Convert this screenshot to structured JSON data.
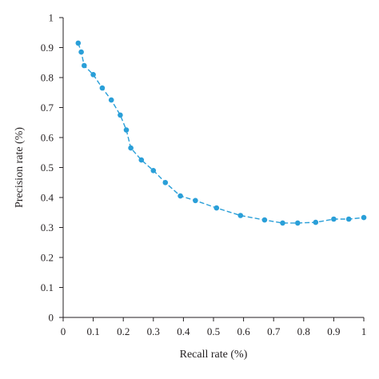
{
  "chart_data": {
    "type": "line",
    "title": "",
    "xlabel": "Recall rate (%)",
    "ylabel": "Precision rate (%)",
    "xlim": [
      0,
      1
    ],
    "ylim": [
      0,
      1
    ],
    "xticks": [
      "0",
      "0.1",
      "0.2",
      "0.3",
      "0.4",
      "0.5",
      "0.6",
      "0.7",
      "0.8",
      "0.9",
      "1"
    ],
    "yticks": [
      "0",
      "0.1",
      "0.2",
      "0.3",
      "0.4",
      "0.5",
      "0.6",
      "0.7",
      "0.8",
      "0.9",
      "1"
    ],
    "grid": false,
    "legend": "none",
    "line_style": "dashed",
    "marker": "circle",
    "color": "#2a9fd8",
    "series": [
      {
        "x": [
          0.05,
          0.06,
          0.07,
          0.1,
          0.13,
          0.16,
          0.19,
          0.21,
          0.225,
          0.26,
          0.3,
          0.34,
          0.39,
          0.44,
          0.51,
          0.59,
          0.67,
          0.73,
          0.78,
          0.84,
          0.9,
          0.95,
          1.0
        ],
        "y": [
          0.915,
          0.885,
          0.84,
          0.81,
          0.765,
          0.725,
          0.675,
          0.625,
          0.565,
          0.525,
          0.49,
          0.45,
          0.405,
          0.39,
          0.365,
          0.34,
          0.325,
          0.315,
          0.315,
          0.317,
          0.328,
          0.328,
          0.333
        ]
      }
    ]
  }
}
